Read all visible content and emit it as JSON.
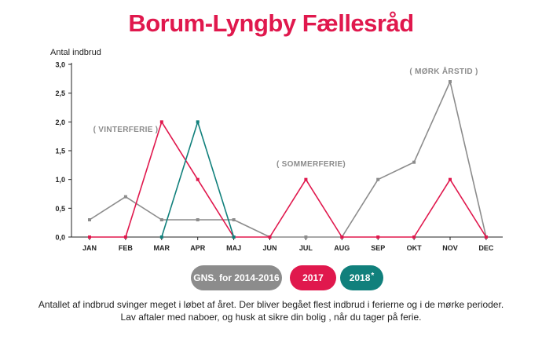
{
  "title": "Borum-Lyngby Fællesråd",
  "chart_data": {
    "type": "line",
    "ylabel": "Antal indbrud",
    "categories": [
      "JAN",
      "FEB",
      "MAR",
      "APR",
      "MAJ",
      "JUN",
      "JUL",
      "AUG",
      "SEP",
      "OKT",
      "NOV",
      "DEC"
    ],
    "ylim": [
      0,
      3
    ],
    "yticks": [
      "0,0",
      "0,5",
      "1,0",
      "1,5",
      "2,0",
      "2,5",
      "3,0"
    ],
    "series": [
      {
        "name": "GNS. for 2014-2016",
        "color": "#8c8c8c",
        "values": [
          0.3,
          0.7,
          0.3,
          0.3,
          0.3,
          0,
          0,
          0,
          1.0,
          1.3,
          2.7,
          0
        ]
      },
      {
        "name": "2017",
        "color": "#e0184d",
        "values": [
          0,
          0,
          2.0,
          1.0,
          0,
          0,
          1.0,
          0,
          0,
          0,
          1.0,
          0
        ]
      },
      {
        "name": "2018",
        "color": "#11807c",
        "values": [
          null,
          null,
          0,
          2.0,
          0,
          null,
          null,
          null,
          null,
          null,
          null,
          null
        ]
      }
    ],
    "annotations": [
      {
        "text": "( VINTERFERIE )",
        "near": "FEB"
      },
      {
        "text": "( SOMMERFERIE)",
        "near": "JUL"
      },
      {
        "text": "( MØRK ÅRSTID )",
        "near": "NOV"
      }
    ]
  },
  "legend": {
    "avg_label": "GNS. for 2014-2016",
    "y2017_label": "2017",
    "y2018_label": "2018",
    "y2018_mark": "*"
  },
  "caption": {
    "line1": "Antallet af indbrud svinger meget i løbet af året. Der bliver begået flest indbrud i ferierne og i de mørke perioder.",
    "line2": "Lav aftaler med naboer, og husk at sikre din bolig , når du tager på ferie."
  }
}
